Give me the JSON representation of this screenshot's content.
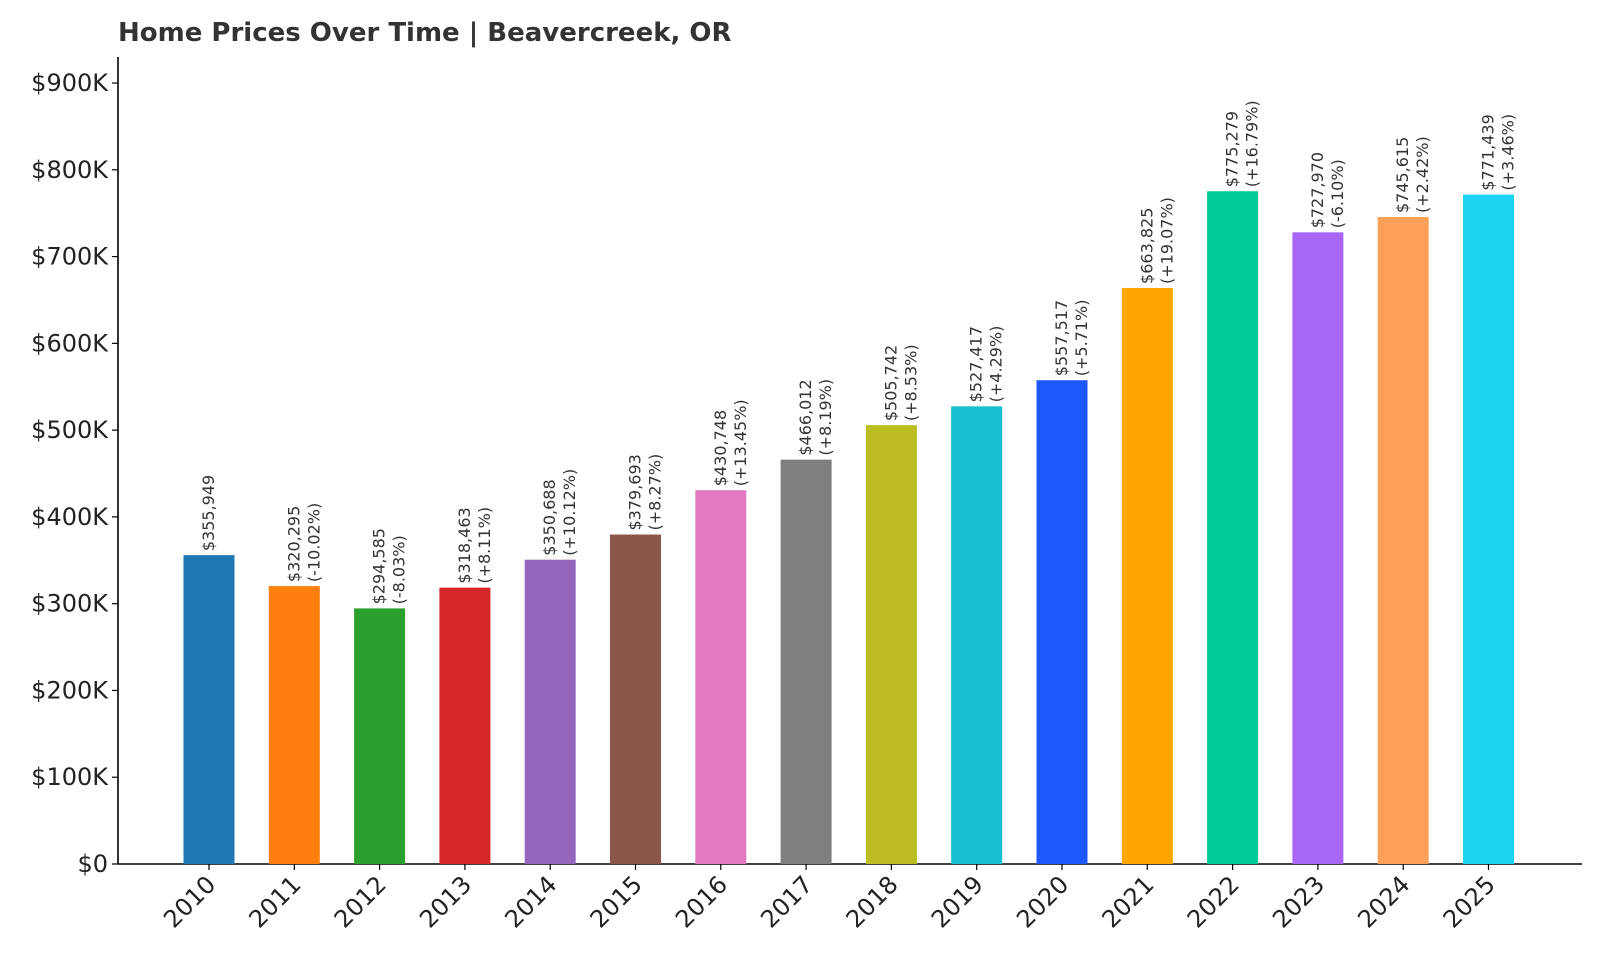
{
  "chart_data": {
    "type": "bar",
    "title": "Home Prices Over Time | Beavercreek, OR",
    "xlabel": "",
    "ylabel": "",
    "ylim": [
      0,
      930000
    ],
    "yticks": [
      0,
      100000,
      200000,
      300000,
      400000,
      500000,
      600000,
      700000,
      800000,
      900000
    ],
    "ytick_labels": [
      "$0",
      "$100K",
      "$200K",
      "$300K",
      "$400K",
      "$500K",
      "$600K",
      "$700K",
      "$800K",
      "$900K"
    ],
    "categories": [
      "2010",
      "2011",
      "2012",
      "2013",
      "2014",
      "2015",
      "2016",
      "2017",
      "2018",
      "2019",
      "2020",
      "2021",
      "2022",
      "2023",
      "2024",
      "2025"
    ],
    "values": [
      355949,
      320295,
      294585,
      318463,
      350688,
      379693,
      430748,
      466012,
      505742,
      527417,
      557517,
      663825,
      775279,
      727970,
      745615,
      771439
    ],
    "value_labels": [
      "$355,949",
      "$320,295",
      "$294,585",
      "$318,463",
      "$350,688",
      "$379,693",
      "$430,748",
      "$466,012",
      "$505,742",
      "$527,417",
      "$557,517",
      "$663,825",
      "$775,279",
      "$727,970",
      "$745,615",
      "$771,439"
    ],
    "change_labels": [
      "",
      "(-10.02%)",
      "(-8.03%)",
      "(+8.11%)",
      "(+10.12%)",
      "(+8.27%)",
      "(+13.45%)",
      "(+8.19%)",
      "(+8.53%)",
      "(+4.29%)",
      "(+5.71%)",
      "(+19.07%)",
      "(+16.79%)",
      "(-6.10%)",
      "(+2.42%)",
      "(+3.46%)"
    ],
    "colors": [
      "#1f77b4",
      "#ff7f0e",
      "#2ca02c",
      "#d62728",
      "#9467bd",
      "#8c564b",
      "#e377c2",
      "#7f7f7f",
      "#bcbd22",
      "#17becf",
      "#1f57ff",
      "#ffa500",
      "#00c896",
      "#a866f7",
      "#ffa05a",
      "#1ad3f0"
    ],
    "grid": false,
    "legend": "none"
  }
}
